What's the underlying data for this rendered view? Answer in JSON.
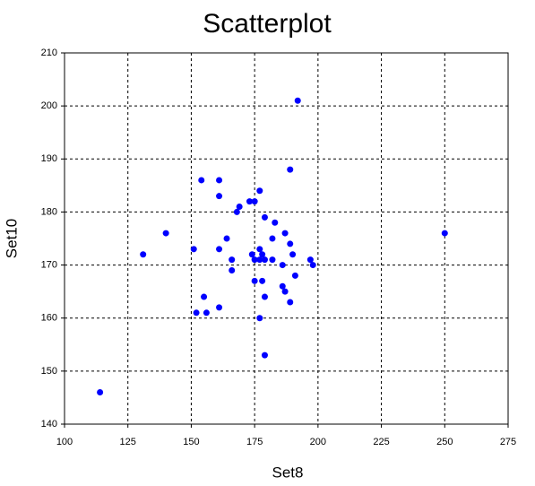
{
  "chart_data": {
    "type": "scatter",
    "title": "Scatterplot",
    "x_label": "Set8",
    "y_label": "Set10",
    "series": [
      {
        "color": "#0000ff",
        "x": [
          114,
          192,
          189,
          154,
          161,
          161,
          177,
          173,
          175,
          169,
          168,
          179,
          183,
          140,
          250,
          187,
          164,
          182,
          189,
          151,
          161,
          177,
          131,
          174,
          178,
          190,
          166,
          175,
          177,
          179,
          182,
          197,
          198,
          186,
          166,
          191,
          175,
          178,
          186,
          187,
          155,
          179,
          189,
          152,
          156,
          161,
          177,
          179
        ],
        "values": [
          146,
          201,
          188,
          186,
          186,
          183,
          184,
          182,
          182,
          181,
          180,
          179,
          178,
          176,
          176,
          176,
          175,
          175,
          174,
          173,
          173,
          173,
          172,
          172,
          172,
          172,
          171,
          171,
          171,
          171,
          171,
          171,
          170,
          170,
          169,
          168,
          167,
          167,
          166,
          165,
          164,
          164,
          163,
          161,
          161,
          162,
          160,
          153
        ]
      }
    ],
    "xlim": [
      100,
      275
    ],
    "xticks": [
      100,
      125,
      150,
      175,
      200,
      225,
      250,
      275
    ],
    "ylim": [
      140,
      210
    ],
    "yticks": [
      140,
      150,
      160,
      170,
      180,
      190,
      200,
      210
    ],
    "grid": true
  }
}
